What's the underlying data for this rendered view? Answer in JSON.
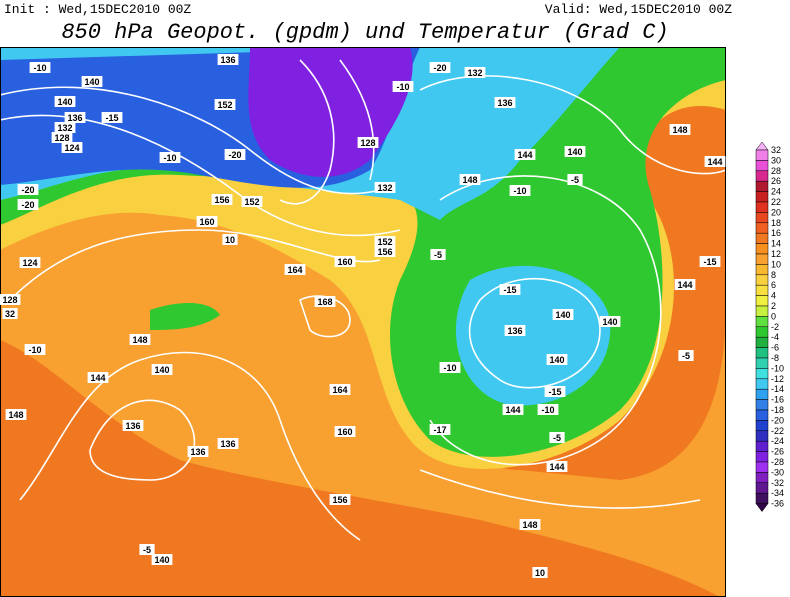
{
  "header": {
    "init": "Init : Wed,15DEC2010 00Z",
    "valid": "Valid: Wed,15DEC2010 00Z",
    "title": "850 hPa Geopot. (gpdm) und Temperatur (Grad C)"
  },
  "colorbar": {
    "labels": [
      "32",
      "30",
      "28",
      "26",
      "24",
      "22",
      "20",
      "18",
      "16",
      "14",
      "12",
      "10",
      "8",
      "6",
      "4",
      "2",
      "0",
      "-2",
      "-4",
      "-6",
      "-8",
      "-10",
      "-12",
      "-14",
      "-16",
      "-18",
      "-20",
      "-22",
      "-24",
      "-26",
      "-28",
      "-30",
      "-32",
      "-34",
      "-36"
    ],
    "colors": [
      "#f8b0f8",
      "#f080e8",
      "#e850d8",
      "#d82890",
      "#b01830",
      "#c82020",
      "#e03020",
      "#e84820",
      "#f06020",
      "#f07820",
      "#f89020",
      "#f8a030",
      "#f8b830",
      "#f8d040",
      "#f8e040",
      "#f0f040",
      "#c8f040",
      "#60e040",
      "#30c830",
      "#20b040",
      "#20c080",
      "#30d0b0",
      "#40e0e0",
      "#40c8f0",
      "#30a0f0",
      "#3080e8",
      "#2860e0",
      "#2040d0",
      "#3030c0",
      "#6020d0",
      "#8020e0",
      "#a030f0",
      "#8020c0",
      "#601890",
      "#401060",
      "#300848"
    ]
  },
  "map": {
    "contour_labels": [
      "140",
      "136",
      "132",
      "128",
      "124",
      "-20",
      "-20",
      "-15",
      "-10",
      "140",
      "136",
      "152",
      "-20",
      "-10",
      "156",
      "152",
      "160",
      "10",
      "164",
      "160",
      "168",
      "156",
      "152",
      "128",
      "132",
      "-10",
      "-20",
      "132",
      "136",
      "144",
      "148",
      "-10",
      "140",
      "-5",
      "148",
      "144",
      "-15",
      "136",
      "140",
      "140",
      "140",
      "-15",
      "-10",
      "144",
      "-5",
      "-10",
      "-17",
      "-5",
      "144",
      "148",
      "10",
      "140",
      "148",
      "144",
      "136",
      "136",
      "136",
      "148",
      "128",
      "32",
      "124",
      "164",
      "160",
      "156",
      "140",
      "-5",
      "-10",
      "-5",
      "144",
      "-15"
    ]
  }
}
